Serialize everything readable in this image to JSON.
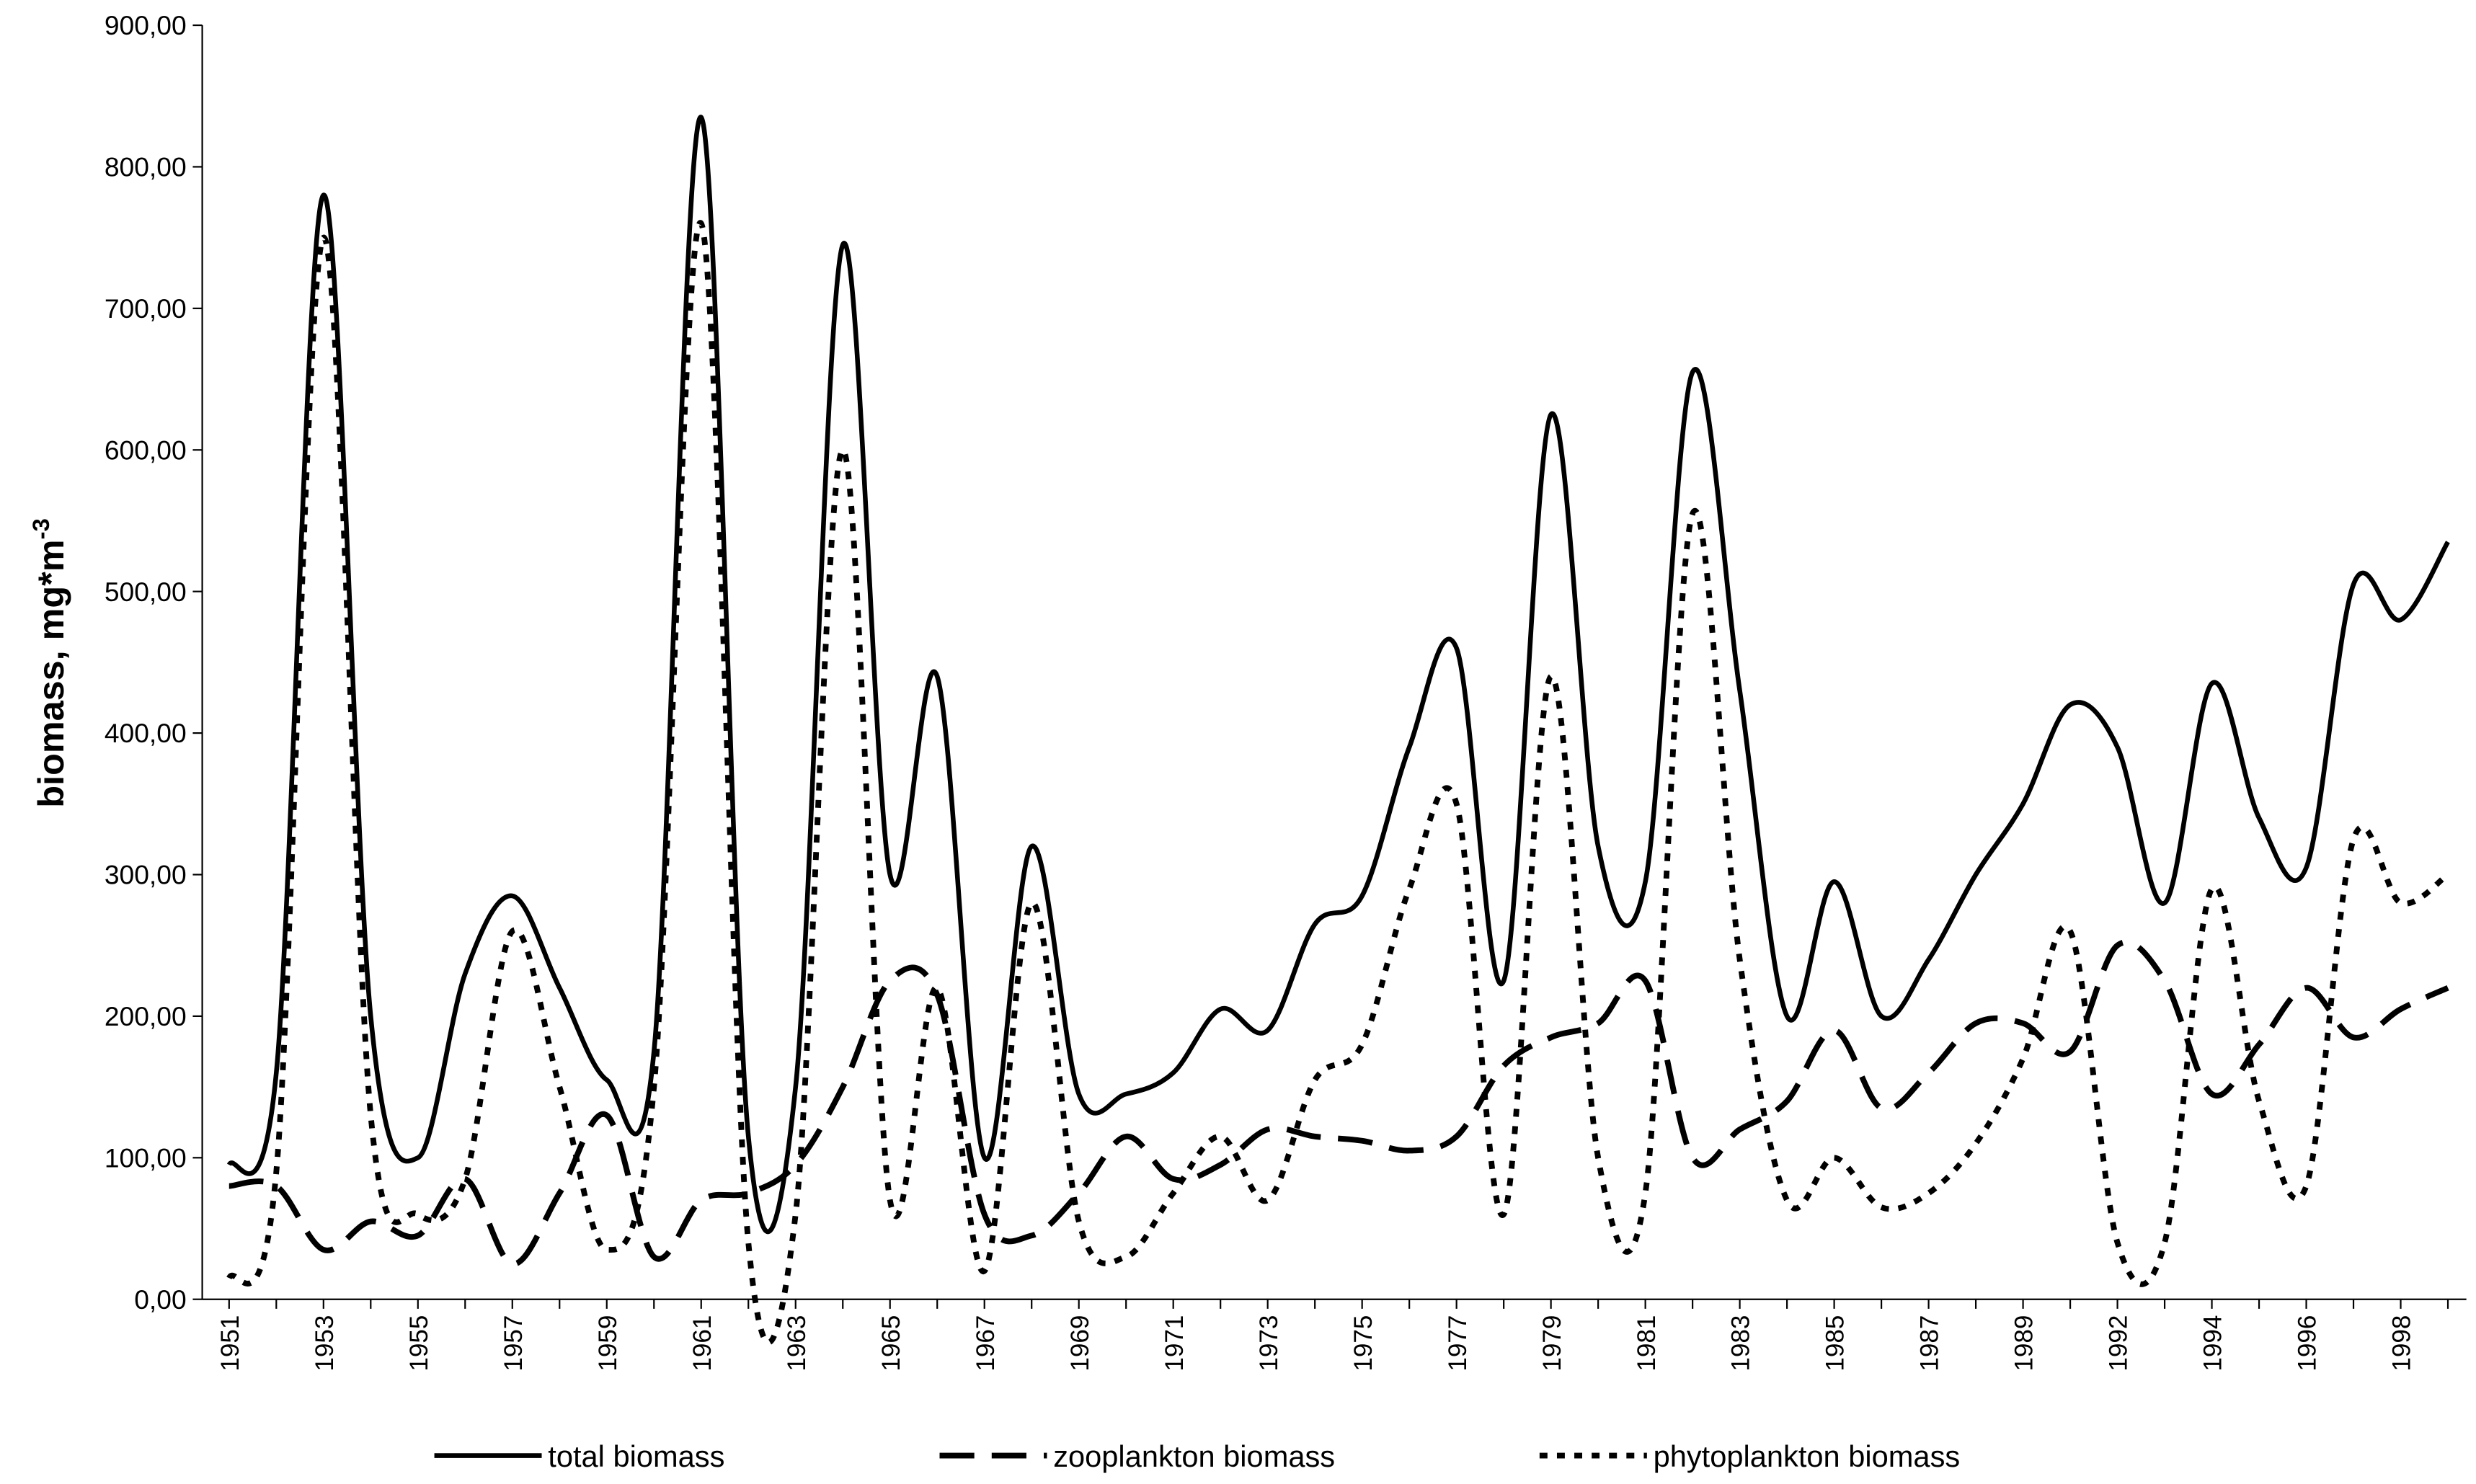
{
  "chart_data": {
    "type": "line",
    "y_label": "biomass, mg*m",
    "y_label_exponent": "-3",
    "categories": [
      "1951",
      null,
      "1953",
      null,
      "1955",
      null,
      "1957",
      null,
      "1959",
      null,
      "1961",
      null,
      "1963",
      null,
      "1965",
      null,
      "1967",
      null,
      "1969",
      null,
      "1971",
      null,
      "1973",
      null,
      "1975",
      null,
      "1977",
      null,
      "1979",
      null,
      "1981",
      null,
      "1983",
      null,
      "1985",
      null,
      "1987",
      null,
      "1989",
      null,
      "1992",
      null,
      "1994",
      null,
      "1996",
      null,
      "1998",
      null
    ],
    "series": [
      {
        "name": "total biomass",
        "color": "#000000",
        "style": "solid",
        "values": [
          95,
          160,
          780,
          200,
          100,
          230,
          285,
          220,
          155,
          175,
          835,
          115,
          150,
          745,
          300,
          440,
          100,
          320,
          145,
          145,
          160,
          205,
          190,
          265,
          285,
          390,
          460,
          225,
          625,
          320,
          295,
          655,
          430,
          200,
          295,
          200,
          240,
          300,
          350,
          420,
          390,
          280,
          435,
          340,
          305,
          505,
          480,
          535
        ]
      },
      {
        "name": "zooplankton biomass",
        "color": "#000000",
        "style": "dashed",
        "values": [
          80,
          80,
          35,
          55,
          45,
          85,
          25,
          75,
          130,
          30,
          70,
          75,
          95,
          150,
          225,
          215,
          60,
          45,
          75,
          115,
          85,
          95,
          120,
          115,
          112,
          105,
          115,
          165,
          185,
          195,
          225,
          100,
          120,
          140,
          190,
          135,
          160,
          195,
          195,
          175,
          250,
          225,
          145,
          180,
          220,
          185,
          205,
          220
        ]
      },
      {
        "name": "phytoplankton biomass",
        "color": "#000000",
        "style": "dotted",
        "values": [
          15,
          90,
          750,
          130,
          60,
          85,
          260,
          150,
          35,
          150,
          760,
          40,
          60,
          600,
          70,
          220,
          20,
          280,
          55,
          30,
          75,
          115,
          70,
          155,
          180,
          290,
          350,
          60,
          440,
          100,
          75,
          555,
          240,
          70,
          100,
          65,
          75,
          110,
          170,
          260,
          40,
          40,
          290,
          140,
          80,
          325,
          280,
          300
        ]
      }
    ],
    "ylim": [
      0,
      900
    ],
    "yticks": [
      {
        "value": 0,
        "label": "0,00"
      },
      {
        "value": 100,
        "label": "100,00"
      },
      {
        "value": 200,
        "label": "200,00"
      },
      {
        "value": 300,
        "label": "300,00"
      },
      {
        "value": 400,
        "label": "400,00"
      },
      {
        "value": 500,
        "label": "500,00"
      },
      {
        "value": 600,
        "label": "600,00"
      },
      {
        "value": 700,
        "label": "700,00"
      },
      {
        "value": 800,
        "label": "800,00"
      },
      {
        "value": 900,
        "label": "900,00"
      }
    ],
    "grid": false,
    "legend": "bottom"
  }
}
